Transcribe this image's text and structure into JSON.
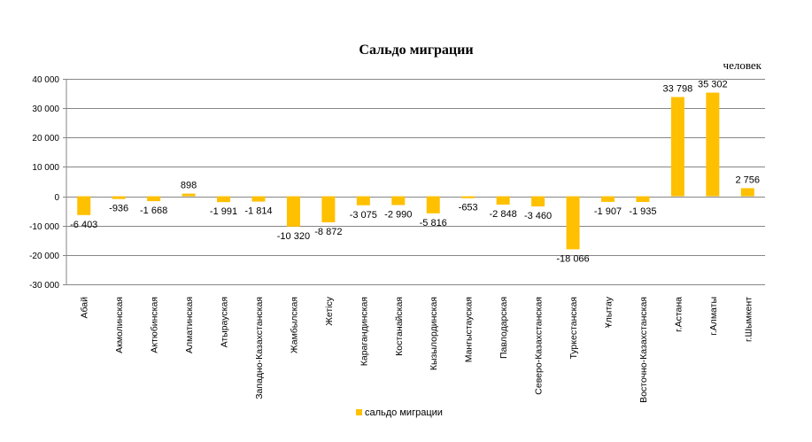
{
  "chart_data": {
    "type": "bar",
    "title": "Сальдо миграции",
    "unit_label": "человек",
    "categories": [
      "Абай",
      "Акмолинская",
      "Актюбинская",
      "Алматинская",
      "Атырауская",
      "Западно-Казахстанская",
      "Жамбылская",
      "Жетісу",
      "Карагандинская",
      "Костанайская",
      "Кызылординская",
      "Мангыстауская",
      "Павлодарская",
      "Северо-Казахстанская",
      "Туркестанская",
      "Ұлытау",
      "Восточно-Казахстанская",
      "г.Астана",
      "г.Алматы",
      "г.Шымкент"
    ],
    "series": [
      {
        "name": "сальдо миграции",
        "values": [
          -6403,
          -936,
          -1668,
          898,
          -1991,
          -1814,
          -10320,
          -8872,
          -3075,
          -2990,
          -5816,
          -653,
          -2848,
          -3460,
          -18066,
          -1907,
          -1935,
          33798,
          35302,
          2756
        ],
        "labels": [
          "-6 403",
          "-936",
          "-1 668",
          "898",
          "-1 991",
          "-1 814",
          "-10 320",
          "-8 872",
          "-3 075",
          "-2 990",
          "-5 816",
          "-653",
          "-2 848",
          "-3 460",
          "-18 066",
          "-1 907",
          "-1 935",
          "33 798",
          "35 302",
          "2 756"
        ]
      }
    ],
    "ylim": [
      -30000,
      40000
    ],
    "yticks": [
      -30000,
      -20000,
      -10000,
      0,
      10000,
      20000,
      30000,
      40000
    ],
    "ytick_labels": [
      "-30 000",
      "-20 000",
      "-10 000",
      "0",
      "10 000",
      "20 000",
      "30 000",
      "40 000"
    ],
    "grid": true,
    "legend": "bottom",
    "colors": {
      "bar": "#FFC000",
      "grid": "#868686",
      "axis": "#868686"
    }
  }
}
